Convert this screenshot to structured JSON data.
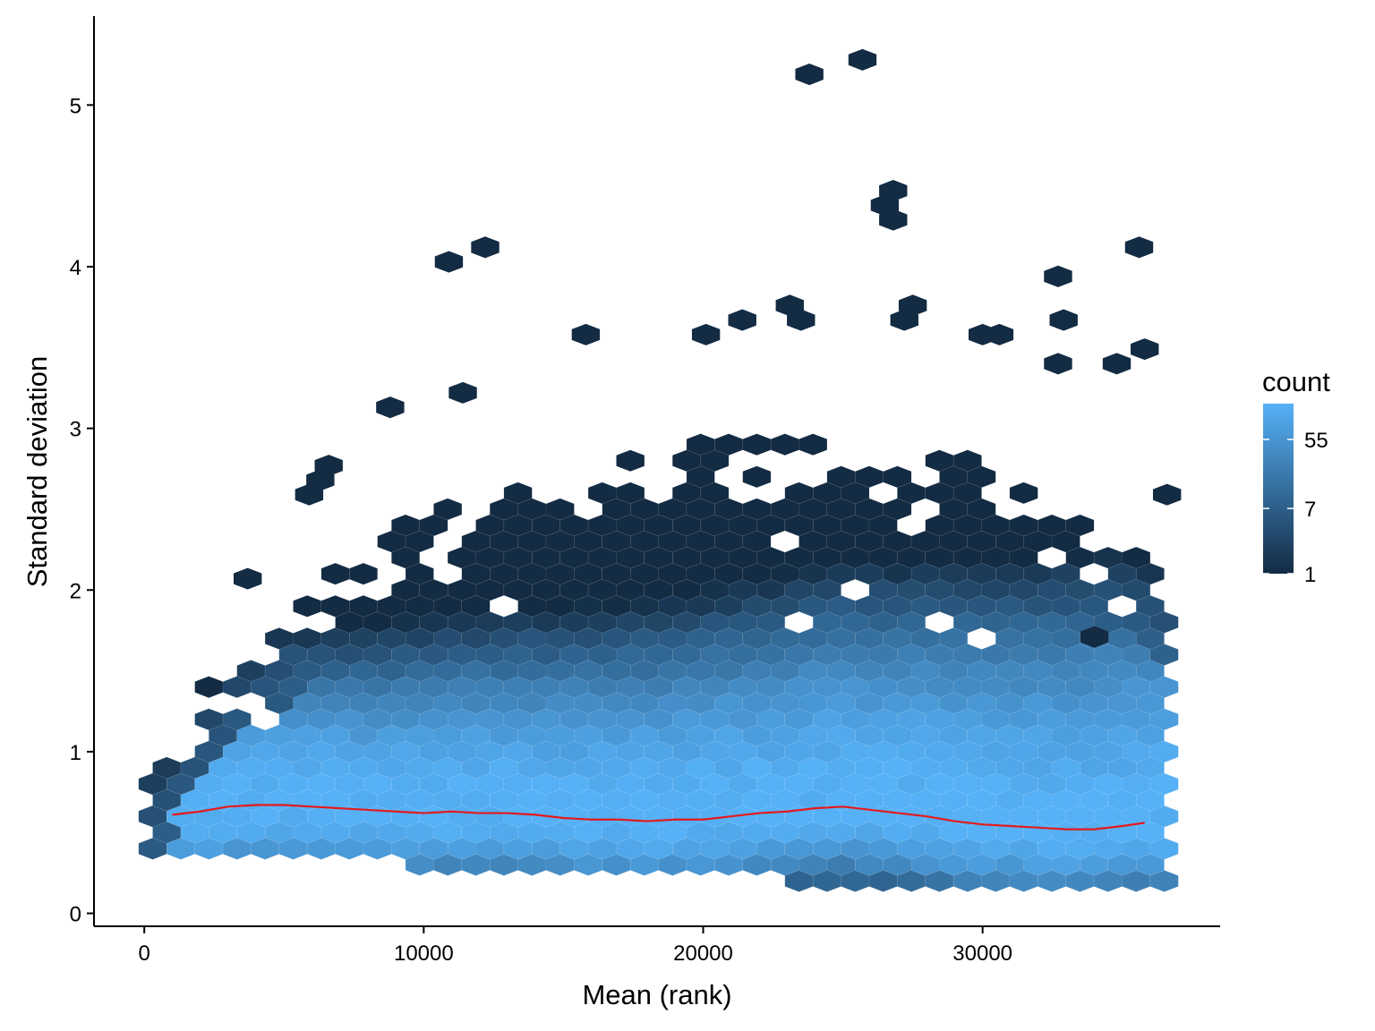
{
  "chart_data": {
    "type": "hexbin",
    "xlabel": "Mean (rank)",
    "ylabel": "Standard deviation",
    "xlim": [
      -1800,
      38500
    ],
    "ylim": [
      -0.08,
      5.55
    ],
    "x_ticks": [
      0,
      10000,
      20000,
      30000
    ],
    "x_tick_labels": [
      "0",
      "10000",
      "20000",
      "30000"
    ],
    "y_ticks": [
      0,
      1,
      2,
      3,
      4,
      5
    ],
    "y_tick_labels": [
      "0",
      "1",
      "2",
      "3",
      "4",
      "5"
    ],
    "grid": false,
    "legend": {
      "title": "count",
      "placement": "right",
      "scale": "log",
      "breaks": [
        1,
        7,
        55
      ],
      "break_labels": [
        "1",
        "7",
        "55"
      ],
      "min": 1,
      "max": 160,
      "color_low": "#132B43",
      "color_high": "#56B1F7"
    },
    "hex_bins": {
      "x_range": [
        300,
        36500
      ],
      "cols": 37,
      "dy": 0.1,
      "density_model": "counts peak near y=0.6, spread widening with x; sparse bins above the cloud",
      "outlier_points": [
        [
          25700,
          5.28
        ],
        [
          23800,
          5.19
        ],
        [
          26800,
          4.47
        ],
        [
          26500,
          4.38
        ],
        [
          26800,
          4.29
        ],
        [
          10900,
          4.03
        ],
        [
          12200,
          4.12
        ],
        [
          32700,
          3.94
        ],
        [
          35600,
          4.12
        ],
        [
          32900,
          3.67
        ],
        [
          23100,
          3.76
        ],
        [
          23500,
          3.67
        ],
        [
          27500,
          3.76
        ],
        [
          27200,
          3.67
        ],
        [
          21400,
          3.67
        ],
        [
          15800,
          3.58
        ],
        [
          20100,
          3.58
        ],
        [
          30000,
          3.58
        ],
        [
          30600,
          3.58
        ],
        [
          35800,
          3.49
        ],
        [
          34800,
          3.4
        ],
        [
          32700,
          3.4
        ],
        [
          11400,
          3.22
        ],
        [
          8800,
          3.13
        ],
        [
          6600,
          2.77
        ],
        [
          6300,
          2.68
        ],
        [
          5900,
          2.59
        ],
        [
          3700,
          2.07
        ],
        [
          36600,
          2.59
        ],
        [
          34000,
          1.71
        ]
      ]
    },
    "series": [
      {
        "type": "smooth_line",
        "color": "#E41A1C",
        "x": [
          1000,
          2000,
          3000,
          4000,
          5000,
          6000,
          7000,
          8000,
          9000,
          10000,
          11000,
          12000,
          13000,
          14000,
          15000,
          16000,
          17000,
          18000,
          19000,
          20000,
          21000,
          22000,
          23000,
          24000,
          25000,
          26000,
          27000,
          28000,
          29000,
          30000,
          31000,
          32000,
          33000,
          34000,
          35000,
          35800
        ],
        "y": [
          0.61,
          0.63,
          0.66,
          0.67,
          0.67,
          0.66,
          0.65,
          0.64,
          0.63,
          0.62,
          0.63,
          0.62,
          0.62,
          0.61,
          0.59,
          0.58,
          0.58,
          0.57,
          0.58,
          0.58,
          0.6,
          0.62,
          0.63,
          0.65,
          0.66,
          0.64,
          0.62,
          0.6,
          0.57,
          0.55,
          0.54,
          0.53,
          0.52,
          0.52,
          0.54,
          0.56
        ]
      }
    ]
  }
}
